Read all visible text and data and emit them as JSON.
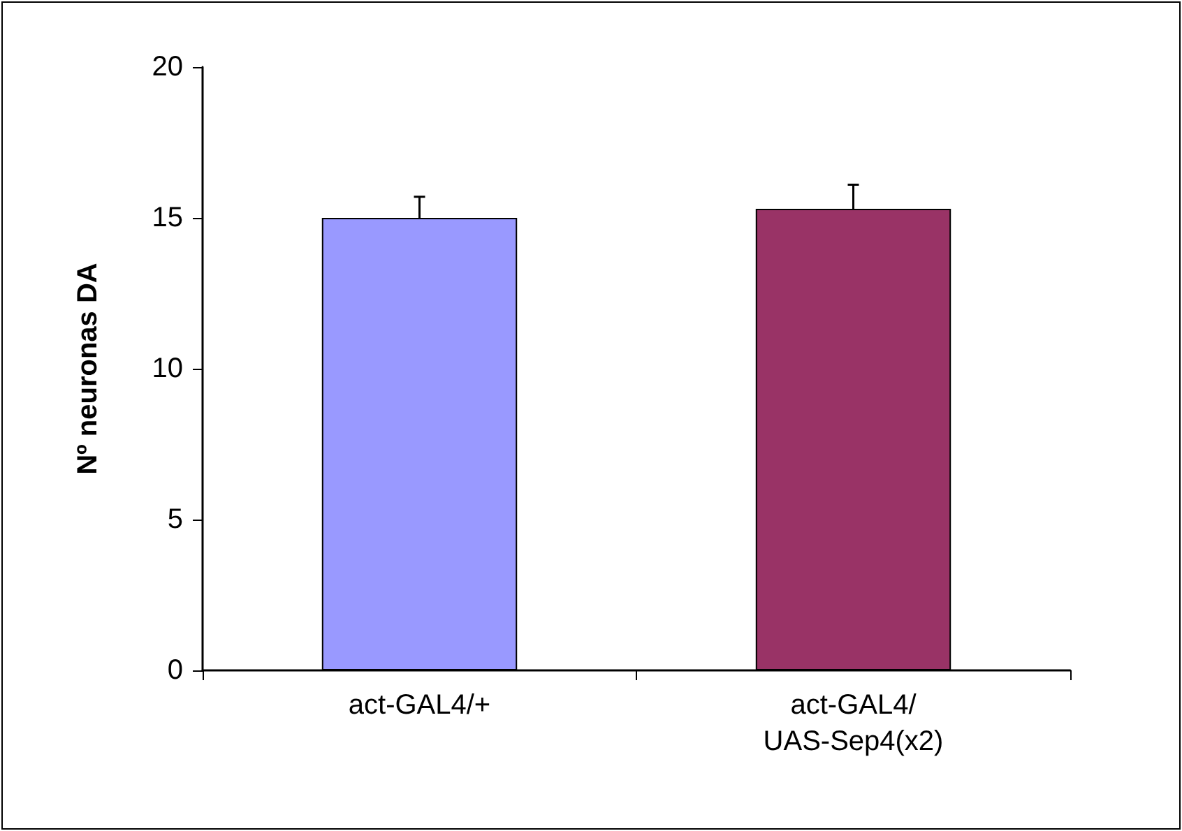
{
  "chart_data": {
    "type": "bar",
    "ylabel": "Nº neuronas DA",
    "categories": [
      "act-GAL4/+",
      "act-GAL4/\nUAS-Sep4(x2)"
    ],
    "values": [
      15.0,
      15.3
    ],
    "colors": [
      "#9999ff",
      "#993366"
    ],
    "errors": [
      0.7,
      0.8
    ],
    "ylim": [
      0,
      20
    ],
    "yticks": [
      0,
      5,
      10,
      15,
      20
    ],
    "grid": false
  }
}
